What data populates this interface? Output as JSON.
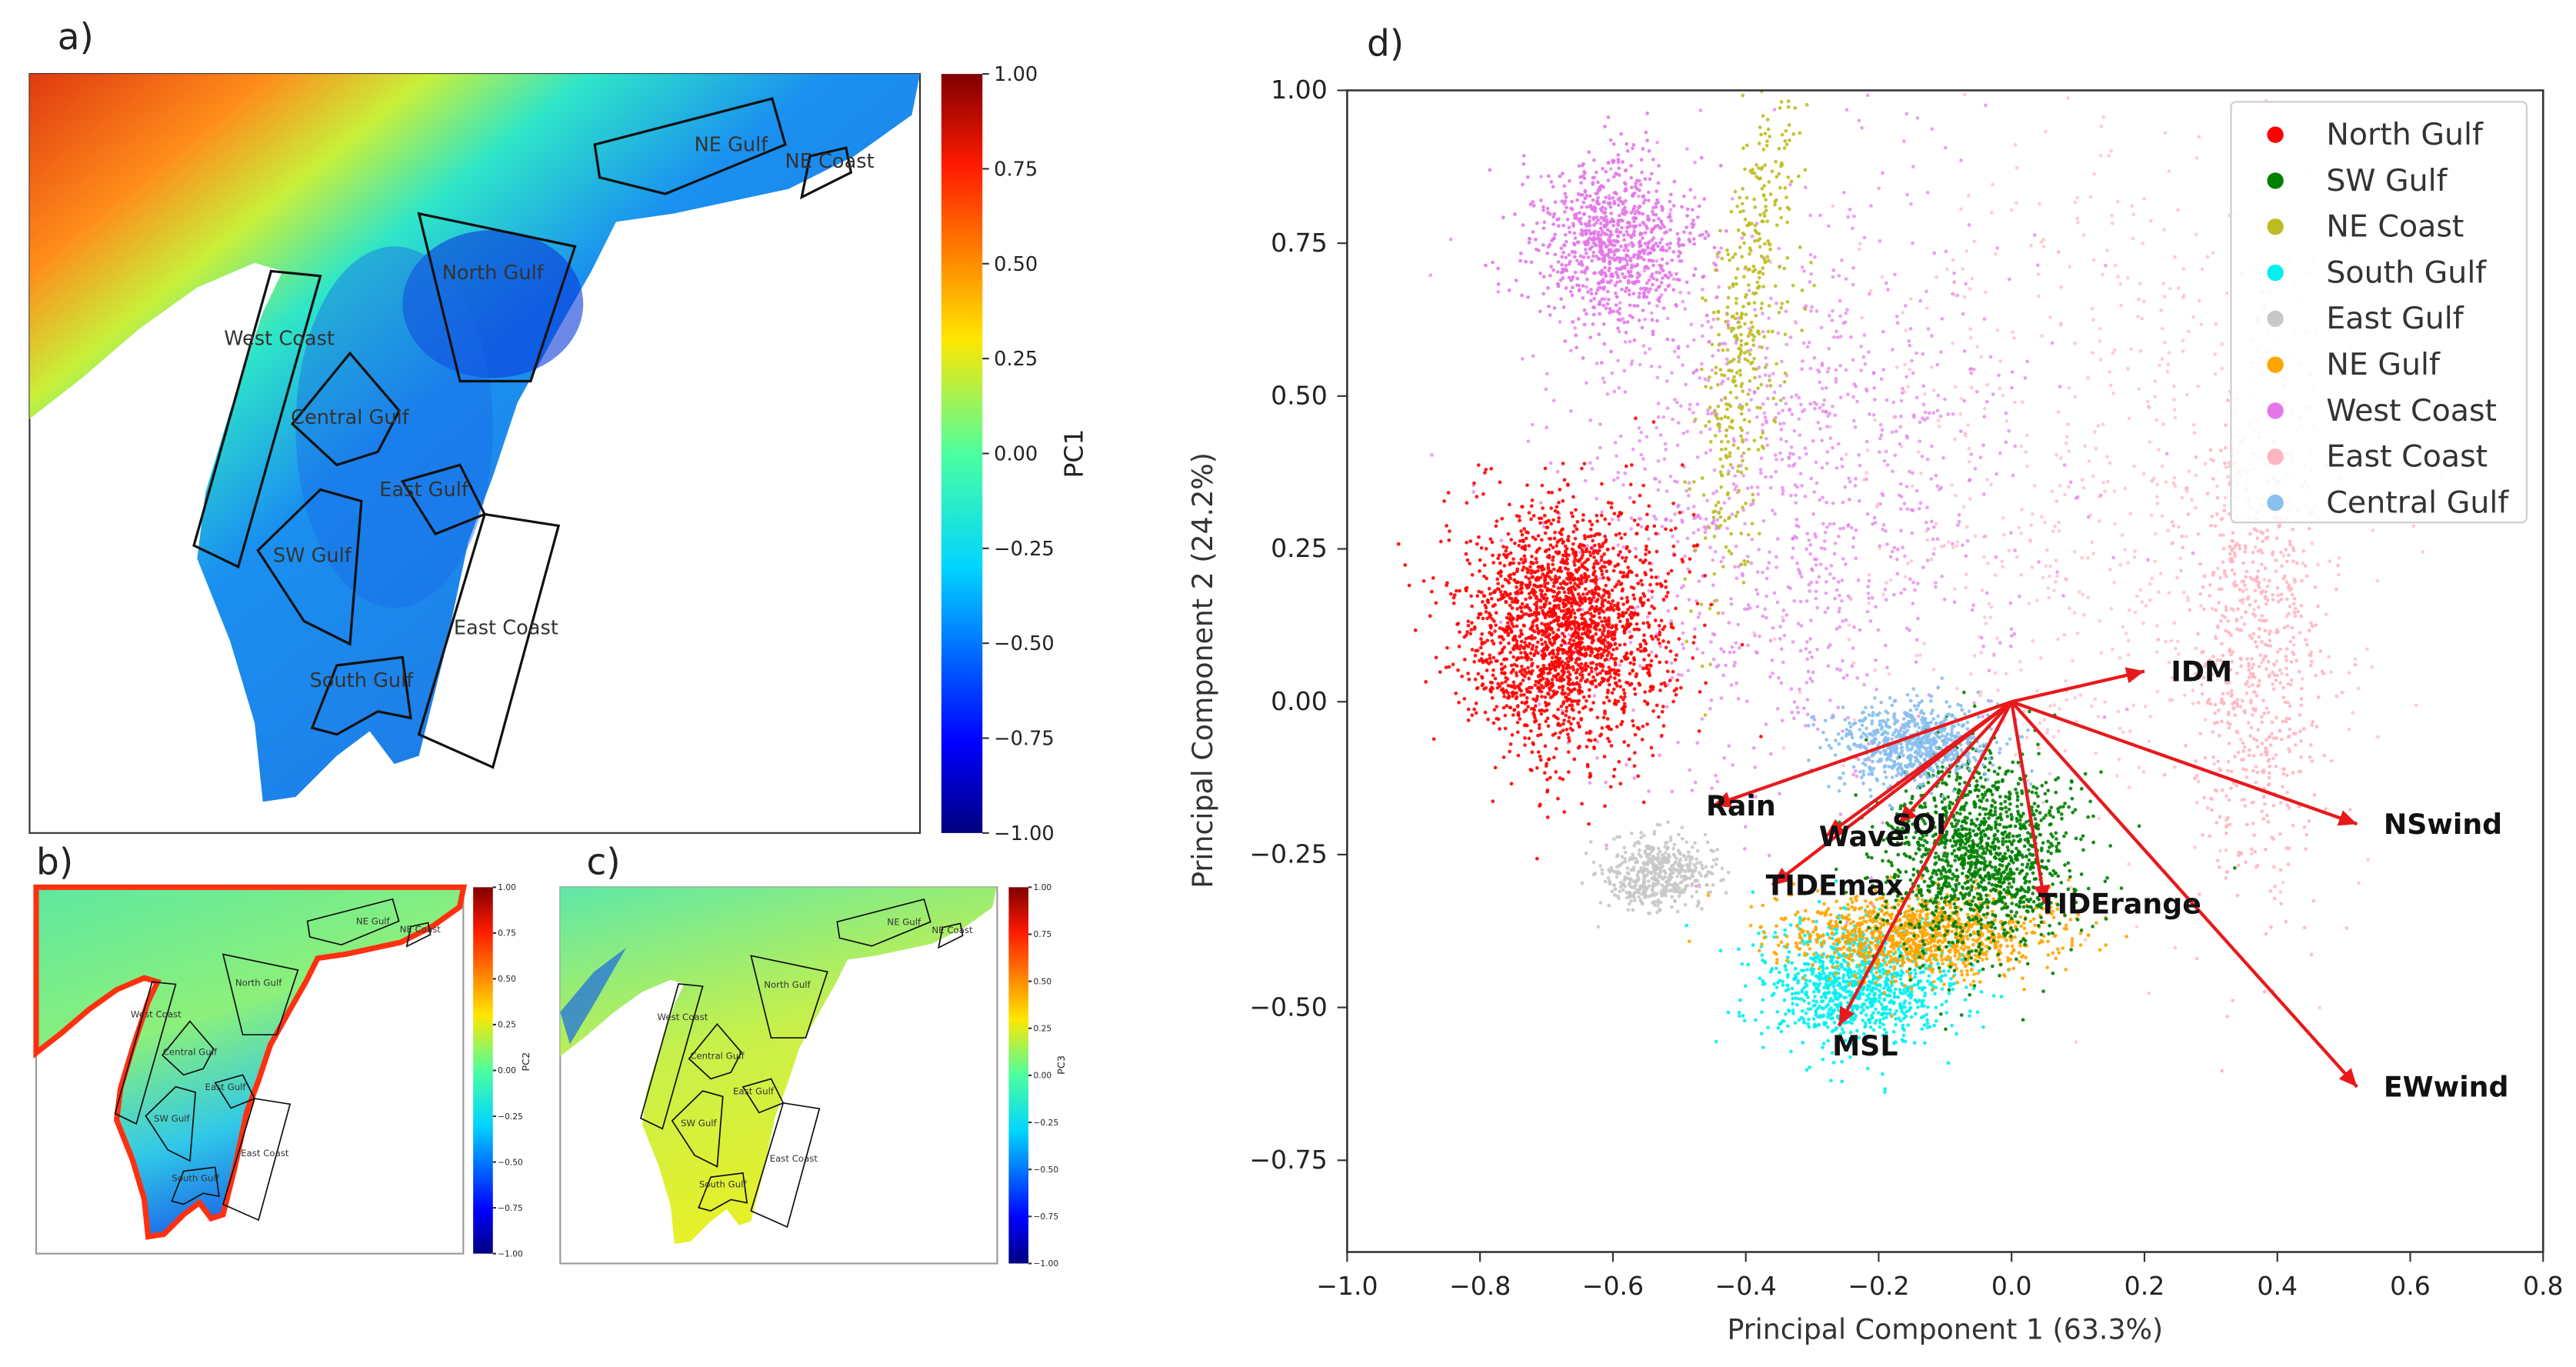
{
  "panels": {
    "a": {
      "label": "a)",
      "colorbar_label": "PC1"
    },
    "b": {
      "label": "b)",
      "colorbar_label": "PC2"
    },
    "c": {
      "label": "c)",
      "colorbar_label": "PC3"
    },
    "d": {
      "label": "d)"
    }
  },
  "colorbar_ticks": [
    "1.00",
    "0.75",
    "0.50",
    "0.25",
    "0.00",
    "−0.25",
    "−0.50",
    "−0.75",
    "−1.00"
  ],
  "colormap": "jet",
  "regions": [
    "NE Gulf",
    "NE Coast",
    "North Gulf",
    "West Coast",
    "Central Gulf",
    "East Gulf",
    "SW Gulf",
    "East Coast",
    "South Gulf"
  ],
  "chart_data": {
    "type": "scatter",
    "xlabel": "Principal Component 1 (63.3%)",
    "ylabel": "Principal Component 2 (24.2%)",
    "xlim": [
      -1.0,
      0.8
    ],
    "ylim": [
      -0.9,
      1.0
    ],
    "xticks": [
      "−1.0",
      "−0.8",
      "−0.6",
      "−0.4",
      "−0.2",
      "0.0",
      "0.2",
      "0.4",
      "0.6",
      "0.8"
    ],
    "xtick_values": [
      -1.0,
      -0.8,
      -0.6,
      -0.4,
      -0.2,
      0.0,
      0.2,
      0.4,
      0.6,
      0.8
    ],
    "yticks": [
      "1.00",
      "0.75",
      "0.50",
      "0.25",
      "0.00",
      "−0.25",
      "−0.50",
      "−0.75"
    ],
    "ytick_values": [
      1.0,
      0.75,
      0.5,
      0.25,
      0.0,
      -0.25,
      -0.5,
      -0.75
    ],
    "grid": false,
    "legend_position": "top-right",
    "series": [
      {
        "name": "North Gulf",
        "color": "#ff0000",
        "components": [
          {
            "center": [
              -0.67,
              0.12
            ],
            "spread": [
              0.075,
              0.1
            ],
            "n": 2200
          }
        ]
      },
      {
        "name": "SW Gulf",
        "color": "#008000",
        "components": [
          {
            "center": [
              -0.05,
              -0.25
            ],
            "spread": [
              0.07,
              0.08
            ],
            "n": 1400
          }
        ]
      },
      {
        "name": "NE Coast",
        "color": "#bcbd22",
        "components": [
          {
            "center": [
              -0.4,
              0.6
            ],
            "spread": [
              0.03,
              0.2
            ],
            "n": 450
          }
        ]
      },
      {
        "name": "South Gulf",
        "color": "#00f0f0",
        "components": [
          {
            "center": [
              -0.23,
              -0.46
            ],
            "spread": [
              0.07,
              0.05
            ],
            "n": 1000
          }
        ]
      },
      {
        "name": "East Gulf",
        "color": "#c8c8c8",
        "components": [
          {
            "center": [
              -0.53,
              -0.28
            ],
            "spread": [
              0.04,
              0.03
            ],
            "n": 500
          }
        ]
      },
      {
        "name": "NE Gulf",
        "color": "#ffa500",
        "components": [
          {
            "center": [
              -0.14,
              -0.38
            ],
            "spread": [
              0.1,
              0.035
            ],
            "n": 1100
          }
        ]
      },
      {
        "name": "West Coast",
        "color": "#e377e9",
        "components": [
          {
            "center": [
              -0.6,
              0.75
            ],
            "spread": [
              0.06,
              0.07
            ],
            "n": 900
          },
          {
            "center": [
              -0.35,
              0.35
            ],
            "spread": [
              0.18,
              0.25
            ],
            "n": 1200
          }
        ]
      },
      {
        "name": "East Coast",
        "color": "#ffb6c1",
        "components": [
          {
            "center": [
              0.37,
              0.08
            ],
            "spread": [
              0.05,
              0.2
            ],
            "n": 700
          },
          {
            "center": [
              0.15,
              0.35
            ],
            "spread": [
              0.2,
              0.3
            ],
            "n": 700
          }
        ]
      },
      {
        "name": "Central Gulf",
        "color": "#87bfef",
        "components": [
          {
            "center": [
              -0.15,
              -0.07
            ],
            "spread": [
              0.06,
              0.035
            ],
            "n": 700
          }
        ]
      }
    ],
    "loadings": [
      {
        "name": "IDM",
        "x": 0.2,
        "y": 0.05
      },
      {
        "name": "NSwind",
        "x": 0.52,
        "y": -0.2
      },
      {
        "name": "EWwind",
        "x": 0.52,
        "y": -0.63
      },
      {
        "name": "TIDErange",
        "x": 0.05,
        "y": -0.33
      },
      {
        "name": "MSL",
        "x": -0.26,
        "y": -0.53
      },
      {
        "name": "TIDEmax",
        "x": -0.36,
        "y": -0.3
      },
      {
        "name": "Wave",
        "x": -0.28,
        "y": -0.22
      },
      {
        "name": "SOI",
        "x": -0.17,
        "y": -0.2
      },
      {
        "name": "Rain",
        "x": -0.45,
        "y": -0.17
      }
    ],
    "loading_color": "#e8191c"
  }
}
